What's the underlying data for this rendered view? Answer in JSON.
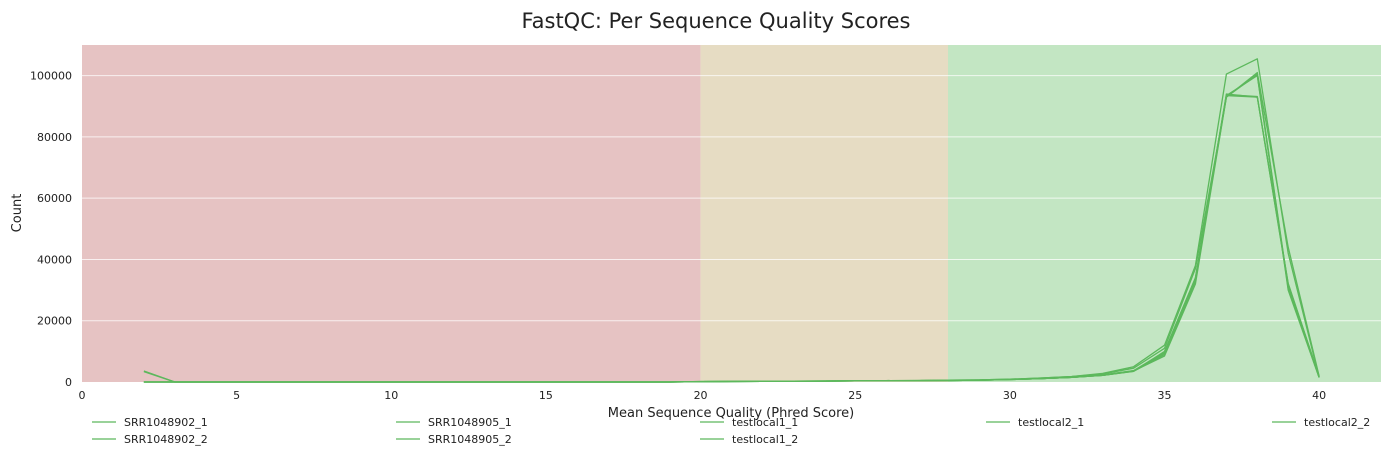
{
  "chart_data": {
    "type": "line",
    "title": "FastQC: Per Sequence Quality Scores",
    "xlabel": "Mean Sequence Quality (Phred Score)",
    "ylabel": "Count",
    "xlim": [
      0,
      42
    ],
    "ylim": [
      0,
      110000
    ],
    "x_ticks": [
      0,
      5,
      10,
      15,
      20,
      25,
      30,
      35,
      40
    ],
    "y_ticks": [
      0,
      20000,
      40000,
      60000,
      80000,
      100000
    ],
    "grid": true,
    "legend_position": "bottom",
    "line_color": "#5cb85c",
    "bands": [
      {
        "from": 0,
        "to": 20,
        "color": "#e6c3c3"
      },
      {
        "from": 20,
        "to": 28,
        "color": "#e6dcc3"
      },
      {
        "from": 28,
        "to": 42,
        "color": "#c3e6c3"
      }
    ],
    "x": [
      2,
      3,
      4,
      5,
      6,
      7,
      8,
      9,
      10,
      11,
      12,
      13,
      14,
      15,
      16,
      17,
      18,
      19,
      20,
      21,
      22,
      23,
      24,
      25,
      26,
      27,
      28,
      29,
      30,
      31,
      32,
      33,
      34,
      35,
      36,
      37,
      38,
      39,
      40
    ],
    "series": [
      {
        "name": "SRR1048902_1",
        "values": [
          3600,
          0,
          0,
          0,
          0,
          0,
          0,
          0,
          0,
          0,
          0,
          0,
          0,
          0,
          0,
          0,
          0,
          0,
          100,
          150,
          200,
          250,
          300,
          350,
          400,
          450,
          500,
          600,
          800,
          1100,
          1500,
          2200,
          3500,
          9000,
          33000,
          93500,
          100000,
          30000,
          1500
        ]
      },
      {
        "name": "SRR1048902_2",
        "values": [
          3400,
          0,
          0,
          0,
          0,
          0,
          0,
          0,
          0,
          0,
          0,
          0,
          0,
          0,
          0,
          0,
          0,
          0,
          100,
          150,
          200,
          250,
          300,
          350,
          400,
          450,
          500,
          600,
          800,
          1100,
          1500,
          2200,
          3500,
          10000,
          34000,
          94000,
          93000,
          32000,
          1800
        ]
      },
      {
        "name": "SRR1048905_1",
        "values": [
          0,
          0,
          0,
          0,
          0,
          0,
          0,
          0,
          0,
          0,
          0,
          0,
          0,
          0,
          0,
          0,
          0,
          0,
          150,
          200,
          250,
          300,
          350,
          400,
          450,
          500,
          600,
          700,
          900,
          1300,
          1800,
          2800,
          5000,
          12000,
          38000,
          100500,
          105500,
          42000,
          1500
        ]
      },
      {
        "name": "SRR1048905_2",
        "values": [
          0,
          0,
          0,
          0,
          0,
          0,
          0,
          0,
          0,
          0,
          0,
          0,
          0,
          0,
          0,
          0,
          0,
          0,
          150,
          200,
          250,
          300,
          350,
          400,
          450,
          500,
          600,
          700,
          900,
          1300,
          1800,
          2600,
          4500,
          11000,
          37000,
          93000,
          101000,
          44000,
          2000
        ]
      },
      {
        "name": "testlocal1_1",
        "values": [
          0,
          0,
          0,
          0,
          0,
          0,
          0,
          0,
          0,
          0,
          0,
          0,
          0,
          0,
          0,
          0,
          0,
          0,
          100,
          150,
          200,
          250,
          300,
          350,
          400,
          450,
          500,
          600,
          800,
          1100,
          1500,
          2200,
          3600,
          8500,
          32000,
          93000,
          100500,
          31000,
          1500
        ]
      },
      {
        "name": "testlocal1_2",
        "values": [
          0,
          0,
          0,
          0,
          0,
          0,
          0,
          0,
          0,
          0,
          0,
          0,
          0,
          0,
          0,
          0,
          0,
          0,
          100,
          150,
          200,
          250,
          300,
          350,
          400,
          450,
          500,
          600,
          800,
          1100,
          1500,
          2200,
          3600,
          9500,
          33000,
          93500,
          93000,
          31500,
          1700
        ]
      },
      {
        "name": "testlocal2_1",
        "values": [
          0,
          0,
          0,
          0,
          0,
          0,
          0,
          0,
          0,
          0,
          0,
          0,
          0,
          0,
          0,
          0,
          0,
          0,
          100,
          150,
          200,
          250,
          300,
          350,
          400,
          450,
          500,
          600,
          800,
          1100,
          1500,
          2300,
          3700,
          9000,
          33500,
          93200,
          100200,
          30500,
          1500
        ]
      },
      {
        "name": "testlocal2_2",
        "values": [
          0,
          0,
          0,
          0,
          0,
          0,
          0,
          0,
          0,
          0,
          0,
          0,
          0,
          0,
          0,
          0,
          0,
          0,
          100,
          150,
          200,
          250,
          300,
          350,
          400,
          450,
          500,
          600,
          800,
          1100,
          1500,
          2300,
          3700,
          9800,
          33800,
          93800,
          93200,
          32200,
          1800
        ]
      }
    ]
  }
}
